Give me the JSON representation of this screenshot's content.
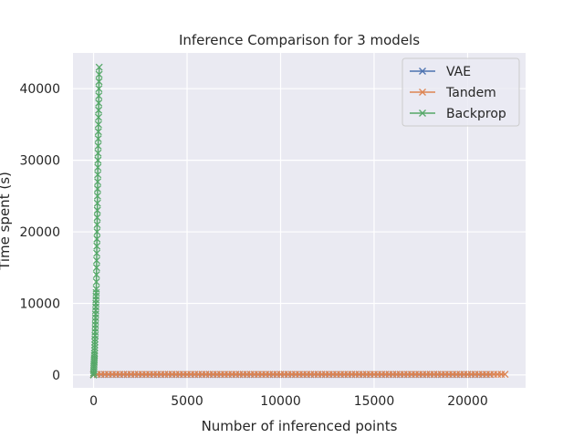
{
  "chart_data": {
    "type": "line",
    "title": "Inference Comparison for 3 models",
    "xlabel": "Number of inferenced points",
    "ylabel": "Time spent (s)",
    "xlim": [
      -1100,
      23100
    ],
    "ylim": [
      -1800,
      45000
    ],
    "xticks": [
      0,
      5000,
      10000,
      15000,
      20000
    ],
    "yticks": [
      0,
      10000,
      20000,
      30000,
      40000
    ],
    "grid": true,
    "legend": "top-right",
    "marker": "x",
    "series": [
      {
        "name": "VAE",
        "color": "#4c72b0",
        "x_start": 0,
        "x_end": 21200,
        "x_step": 200,
        "y_start": 60,
        "y_end": 60
      },
      {
        "name": "Tandem",
        "color": "#dd8452",
        "x_start": 0,
        "x_end": 22000,
        "x_step": 200,
        "y_start": 90,
        "y_end": 90
      },
      {
        "name": "Backprop",
        "color": "#55a868",
        "points": [
          [
            0,
            0
          ],
          [
            5,
            300
          ],
          [
            10,
            600
          ],
          [
            15,
            900
          ],
          [
            20,
            1200
          ],
          [
            25,
            1500
          ],
          [
            30,
            1800
          ],
          [
            35,
            2100
          ],
          [
            40,
            2400
          ],
          [
            45,
            2700
          ],
          [
            50,
            3000
          ],
          [
            55,
            3400
          ],
          [
            60,
            3800
          ],
          [
            65,
            4200
          ],
          [
            70,
            4600
          ],
          [
            75,
            5000
          ],
          [
            80,
            5500
          ],
          [
            85,
            6000
          ],
          [
            90,
            6500
          ],
          [
            95,
            7000
          ],
          [
            100,
            7500
          ],
          [
            105,
            8000
          ],
          [
            110,
            8500
          ],
          [
            115,
            9000
          ],
          [
            120,
            9500
          ],
          [
            125,
            10000
          ],
          [
            130,
            10500
          ],
          [
            135,
            11000
          ],
          [
            140,
            11500
          ],
          [
            145,
            12000
          ],
          [
            150,
            13000
          ],
          [
            155,
            14000
          ],
          [
            160,
            15000
          ],
          [
            165,
            16000
          ],
          [
            170,
            17000
          ],
          [
            175,
            18000
          ],
          [
            180,
            19000
          ],
          [
            185,
            20000
          ],
          [
            190,
            21000
          ],
          [
            195,
            22000
          ],
          [
            200,
            23000
          ],
          [
            205,
            24000
          ],
          [
            210,
            25000
          ],
          [
            215,
            26000
          ],
          [
            220,
            27000
          ],
          [
            225,
            28000
          ],
          [
            230,
            29000
          ],
          [
            235,
            30000
          ],
          [
            240,
            31000
          ],
          [
            245,
            32000
          ],
          [
            250,
            33000
          ],
          [
            255,
            34000
          ],
          [
            260,
            35000
          ],
          [
            265,
            36000
          ],
          [
            270,
            37000
          ],
          [
            275,
            38000
          ],
          [
            280,
            39000
          ],
          [
            285,
            40000
          ],
          [
            290,
            41000
          ],
          [
            295,
            42000
          ],
          [
            300,
            43000
          ]
        ]
      }
    ]
  }
}
